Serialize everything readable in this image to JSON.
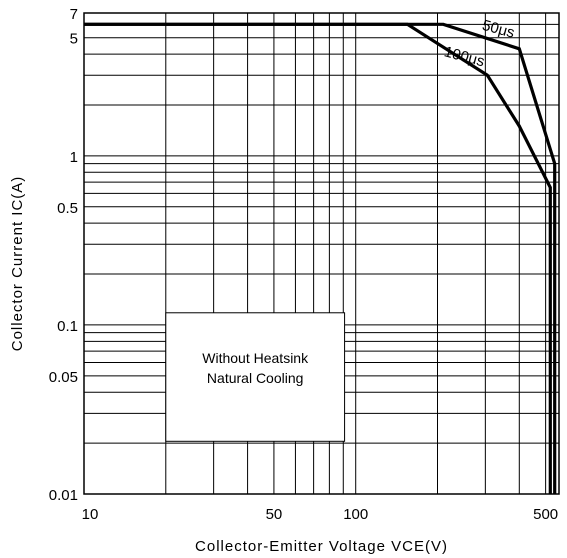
{
  "chart_data": {
    "type": "line",
    "title": "",
    "xlabel": "Collector-Emitter Voltage VCE(V)",
    "ylabel": "Collector Current IC(A)",
    "xscale": "log",
    "yscale": "log",
    "xlim": [
      10,
      560
    ],
    "ylim": [
      0.01,
      7
    ],
    "grid": true,
    "x_ticks": [
      {
        "value": 10,
        "label": "10"
      },
      {
        "value": 50,
        "label": "50"
      },
      {
        "value": 100,
        "label": "100"
      },
      {
        "value": 500,
        "label": "500"
      }
    ],
    "y_ticks": [
      {
        "value": 0.01,
        "label": "0.01"
      },
      {
        "value": 0.05,
        "label": "0.05"
      },
      {
        "value": 0.1,
        "label": "0.1"
      },
      {
        "value": 0.5,
        "label": "0.5"
      },
      {
        "value": 1,
        "label": "1"
      },
      {
        "value": 5,
        "label": "5"
      },
      {
        "value": 7,
        "label": "7"
      }
    ],
    "series": [
      {
        "name": "50μs",
        "points": [
          [
            10,
            6
          ],
          [
            210,
            6
          ],
          [
            400,
            4.3
          ],
          [
            540,
            0.9
          ],
          [
            540,
            0.01
          ]
        ]
      },
      {
        "name": "100μs",
        "points": [
          [
            10,
            6
          ],
          [
            155,
            6
          ],
          [
            305,
            3.0
          ],
          [
            400,
            1.5
          ],
          [
            520,
            0.65
          ],
          [
            520,
            0.01
          ]
        ]
      }
    ],
    "annotations": [
      "Without Heatsink",
      "Natural Cooling"
    ]
  }
}
